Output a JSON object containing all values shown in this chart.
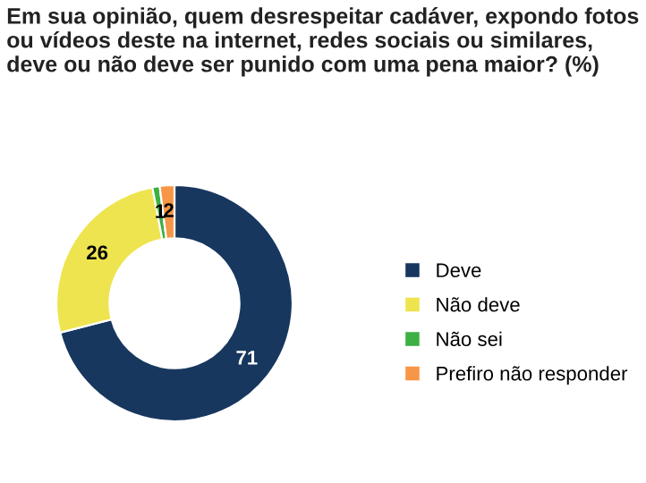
{
  "chart_data": {
    "type": "donut",
    "title": "Em sua opinião, quem desrespeitar cadáver, expondo fotos ou vídeos deste na internet, redes sociais ou similares, deve ou não deve ser punido com uma pena maior? (%)",
    "categories": [
      "Deve",
      "Não deve",
      "Não sei",
      "Prefiro não responder"
    ],
    "values": [
      71,
      26,
      1,
      2
    ],
    "colors": [
      "#17375e",
      "#eee44f",
      "#3cb043",
      "#f79646"
    ],
    "data_labels": true,
    "legend": "right"
  }
}
